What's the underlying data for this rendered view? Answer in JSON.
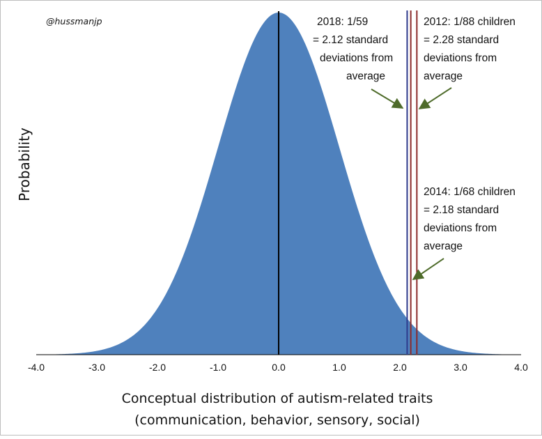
{
  "chart_data": {
    "type": "area",
    "title": "",
    "credit": "@hussmanjp",
    "xlabel_line1": "Conceptual distribution of autism-related traits",
    "xlabel_line2": "(communication, behavior, sensory, social)",
    "ylabel": "Probability",
    "xlim": [
      -4.0,
      4.0
    ],
    "x_ticks": [
      "-4.0",
      "-3.0",
      "-2.0",
      "-1.0",
      "0.0",
      "1.0",
      "2.0",
      "3.0",
      "4.0"
    ],
    "grid": false,
    "distribution": {
      "kind": "normal",
      "mean": 0,
      "sd": 1
    },
    "fill_color": "#4f81bd",
    "mean_line": {
      "x": 0.0,
      "color": "#000000"
    },
    "threshold_lines": [
      {
        "year": "2018",
        "x": 2.12,
        "color": "#2e3a8c"
      },
      {
        "year": "2014",
        "x": 2.18,
        "color": "#8b2a2a"
      },
      {
        "year": "2012",
        "x": 2.28,
        "color": "#8b2a2a"
      }
    ],
    "annotations": {
      "a2018": {
        "lines": [
          "2018: 1/59",
          "= 2.12 standard",
          "deviations from",
          "average"
        ]
      },
      "a2012": {
        "lines": [
          "2012: 1/88 children",
          "= 2.28 standard",
          "deviations from",
          "average"
        ]
      },
      "a2014": {
        "lines": [
          "2014: 1/68 children",
          "= 2.18 standard",
          "deviations from",
          "average"
        ]
      }
    },
    "arrow_color": "#4e6b2a"
  }
}
